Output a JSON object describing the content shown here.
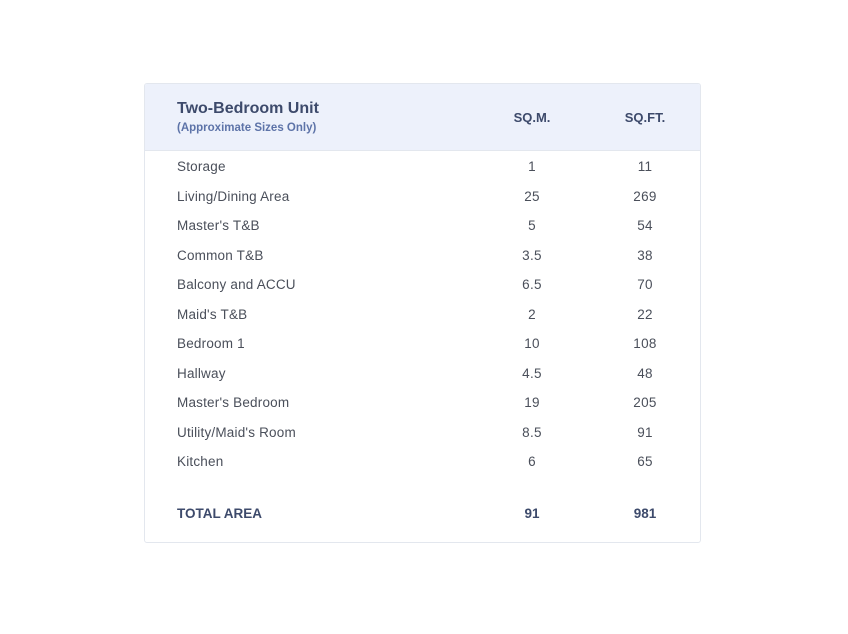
{
  "table": {
    "title": "Two-Bedroom Unit",
    "subtitle": "(Approximate Sizes Only)",
    "col_sqm": "SQ.M.",
    "col_sqft": "SQ.FT.",
    "rows": [
      {
        "label": "Storage",
        "sqm": "1",
        "sqft": "11"
      },
      {
        "label": "Living/Dining Area",
        "sqm": "25",
        "sqft": "269"
      },
      {
        "label": "Master's T&B",
        "sqm": "5",
        "sqft": "54"
      },
      {
        "label": "Common T&B",
        "sqm": "3.5",
        "sqft": "38"
      },
      {
        "label": "Balcony and ACCU",
        "sqm": "6.5",
        "sqft": "70"
      },
      {
        "label": "Maid's T&B",
        "sqm": "2",
        "sqft": "22"
      },
      {
        "label": "Bedroom 1",
        "sqm": "10",
        "sqft": "108"
      },
      {
        "label": "Hallway",
        "sqm": "4.5",
        "sqft": "48"
      },
      {
        "label": "Master's Bedroom",
        "sqm": "19",
        "sqft": "205"
      },
      {
        "label": "Utility/Maid's Room",
        "sqm": "8.5",
        "sqft": "91"
      },
      {
        "label": "Kitchen",
        "sqm": "6",
        "sqft": "65"
      }
    ],
    "total": {
      "label": "TOTAL AREA",
      "sqm": "91",
      "sqft": "981"
    }
  }
}
